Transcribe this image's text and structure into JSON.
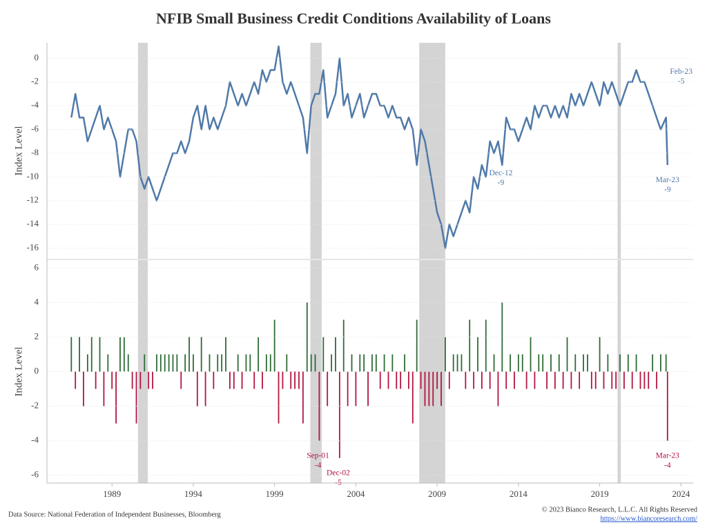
{
  "page": {
    "title": "NFIB Small Business Credit Conditions Availability of Loans",
    "source": "Data Source: National Federation of Independent Businesses, Bloomberg",
    "copyright": "© 2023 Bianco Research, L.L.C. All Rights Reserved",
    "url": "https://www.biancoresearch.com/"
  },
  "chart_data": [
    {
      "type": "line",
      "y_label": "Index Level",
      "color": "#4f79a8",
      "grid": true,
      "xlim": [
        1985,
        2024.75
      ],
      "xticks": [
        1989,
        1994,
        1999,
        2004,
        2009,
        2014,
        2019,
        2024
      ],
      "ylim": [
        -16.9,
        1.3
      ],
      "yticks": [
        0,
        -2,
        -4,
        -6,
        -8,
        -10,
        -12,
        -14,
        -16
      ],
      "recessions": [
        [
          1990.6,
          1991.2
        ],
        [
          2001.2,
          2001.9
        ],
        [
          2007.9,
          2009.5
        ],
        [
          2020.1,
          2020.3
        ]
      ],
      "recession_color": "#d4d4d4",
      "x": [
        1986.5,
        1986.75,
        1987,
        1987.25,
        1987.5,
        1987.75,
        1988,
        1988.25,
        1988.5,
        1988.75,
        1989,
        1989.25,
        1989.5,
        1989.75,
        1990,
        1990.25,
        1990.5,
        1990.75,
        1991,
        1991.25,
        1991.5,
        1991.75,
        1992,
        1992.25,
        1992.5,
        1992.75,
        1993,
        1993.25,
        1993.5,
        1993.75,
        1994,
        1994.25,
        1994.5,
        1994.75,
        1995,
        1995.25,
        1995.5,
        1995.75,
        1996,
        1996.25,
        1996.5,
        1996.75,
        1997,
        1997.25,
        1997.5,
        1997.75,
        1998,
        1998.25,
        1998.5,
        1998.75,
        1999,
        1999.25,
        1999.5,
        1999.75,
        2000,
        2000.25,
        2000.5,
        2000.75,
        2001,
        2001.25,
        2001.5,
        2001.75,
        2002,
        2002.25,
        2002.5,
        2002.75,
        2003,
        2003.25,
        2003.5,
        2003.75,
        2004,
        2004.25,
        2004.5,
        2004.75,
        2005,
        2005.25,
        2005.5,
        2005.75,
        2006,
        2006.25,
        2006.5,
        2006.75,
        2007,
        2007.25,
        2007.5,
        2007.75,
        2008,
        2008.25,
        2008.5,
        2008.75,
        2009,
        2009.25,
        2009.5,
        2009.75,
        2010,
        2010.25,
        2010.5,
        2010.75,
        2011,
        2011.25,
        2011.5,
        2011.75,
        2012,
        2012.25,
        2012.5,
        2012.75,
        2013,
        2013.25,
        2013.5,
        2013.75,
        2014,
        2014.25,
        2014.5,
        2014.75,
        2015,
        2015.25,
        2015.5,
        2015.75,
        2016,
        2016.25,
        2016.5,
        2016.75,
        2017,
        2017.25,
        2017.5,
        2017.75,
        2018,
        2018.25,
        2018.5,
        2018.75,
        2019,
        2019.25,
        2019.5,
        2019.75,
        2020,
        2020.25,
        2020.5,
        2020.75,
        2021,
        2021.25,
        2021.5,
        2021.75,
        2022,
        2022.25,
        2022.5,
        2022.75,
        2023.08,
        2023.17
      ],
      "values": [
        -5,
        -3,
        -5,
        -5,
        -7,
        -6,
        -5,
        -4,
        -6,
        -5,
        -6,
        -7,
        -10,
        -8,
        -6,
        -6,
        -7,
        -10,
        -11,
        -10,
        -11,
        -12,
        -11,
        -10,
        -9,
        -8,
        -8,
        -7,
        -8,
        -7,
        -5,
        -4,
        -6,
        -4,
        -6,
        -5,
        -6,
        -5,
        -4,
        -2,
        -3,
        -4,
        -3,
        -4,
        -3,
        -2,
        -3,
        -1,
        -2,
        -1,
        -1,
        1,
        -2,
        -3,
        -2,
        -3,
        -4,
        -5,
        -8,
        -4,
        -3,
        -3,
        -1,
        -5,
        -4,
        -3,
        0,
        -4,
        -3,
        -5,
        -4,
        -3,
        -5,
        -4,
        -3,
        -3,
        -4,
        -4,
        -5,
        -4,
        -5,
        -5,
        -6,
        -5,
        -6,
        -9,
        -6,
        -7,
        -9,
        -11,
        -13,
        -14,
        -16,
        -14,
        -15,
        -14,
        -13,
        -12,
        -13,
        -10,
        -11,
        -9,
        -10,
        -7,
        -8,
        -7,
        -9,
        -5,
        -6,
        -6,
        -7,
        -6,
        -5,
        -6,
        -4,
        -5,
        -4,
        -4,
        -5,
        -4,
        -5,
        -4,
        -5,
        -3,
        -4,
        -3,
        -4,
        -3,
        -2,
        -3,
        -4,
        -2,
        -3,
        -2,
        -3,
        -4,
        -3,
        -2,
        -2,
        -1,
        -2,
        -2,
        -3,
        -4,
        -5,
        -6,
        -5,
        -9
      ],
      "annotations": [
        {
          "x": 2012.92,
          "label": "Dec-12",
          "value": -9
        },
        {
          "x": 2023.08,
          "label": "Feb-23",
          "value": -5
        },
        {
          "x": 2023.17,
          "label": "Mar-23",
          "value": -9
        }
      ]
    },
    {
      "type": "bar",
      "y_label": "Index Level",
      "color_positive": "#2d6b35",
      "color_negative": "#b3143f",
      "grid": true,
      "xlim": [
        1985,
        2024.75
      ],
      "xticks": [
        1989,
        1994,
        1999,
        2004,
        2009,
        2014,
        2019,
        2024
      ],
      "ylim": [
        -6.45,
        6.45
      ],
      "yticks": [
        6,
        4,
        2,
        0,
        -2,
        -4,
        -6
      ],
      "recessions": [
        [
          1990.6,
          1991.2
        ],
        [
          2001.2,
          2001.9
        ],
        [
          2007.9,
          2009.5
        ],
        [
          2020.1,
          2020.3
        ]
      ],
      "recession_color": "#d4d4d4",
      "x": [
        1986.5,
        1986.75,
        1987,
        1987.25,
        1987.5,
        1987.75,
        1988,
        1988.25,
        1988.5,
        1988.75,
        1989,
        1989.25,
        1989.5,
        1989.75,
        1990,
        1990.25,
        1990.5,
        1990.75,
        1991,
        1991.25,
        1991.5,
        1991.75,
        1992,
        1992.25,
        1992.5,
        1992.75,
        1993,
        1993.25,
        1993.5,
        1993.75,
        1994,
        1994.25,
        1994.5,
        1994.75,
        1995,
        1995.25,
        1995.5,
        1995.75,
        1996,
        1996.25,
        1996.5,
        1996.75,
        1997,
        1997.25,
        1997.5,
        1997.75,
        1998,
        1998.25,
        1998.5,
        1998.75,
        1999,
        1999.25,
        1999.5,
        1999.75,
        2000,
        2000.25,
        2000.5,
        2000.75,
        2001,
        2001.25,
        2001.5,
        2001.75,
        2002,
        2002.25,
        2002.5,
        2002.75,
        2003,
        2003.25,
        2003.5,
        2003.75,
        2004,
        2004.25,
        2004.5,
        2004.75,
        2005,
        2005.25,
        2005.5,
        2005.75,
        2006,
        2006.25,
        2006.5,
        2006.75,
        2007,
        2007.25,
        2007.5,
        2007.75,
        2008,
        2008.25,
        2008.5,
        2008.75,
        2009,
        2009.25,
        2009.5,
        2009.75,
        2010,
        2010.25,
        2010.5,
        2010.75,
        2011,
        2011.25,
        2011.5,
        2011.75,
        2012,
        2012.25,
        2012.5,
        2012.75,
        2013,
        2013.25,
        2013.5,
        2013.75,
        2014,
        2014.25,
        2014.5,
        2014.75,
        2015,
        2015.25,
        2015.5,
        2015.75,
        2016,
        2016.25,
        2016.5,
        2016.75,
        2017,
        2017.25,
        2017.5,
        2017.75,
        2018,
        2018.25,
        2018.5,
        2018.75,
        2019,
        2019.25,
        2019.5,
        2019.75,
        2020,
        2020.25,
        2020.5,
        2020.75,
        2021,
        2021.25,
        2021.5,
        2021.75,
        2022,
        2022.25,
        2022.5,
        2022.75,
        2023.08,
        2023.17
      ],
      "values": [
        2,
        -1,
        2,
        -2,
        1,
        2,
        -1,
        2,
        -2,
        1,
        -1,
        -3,
        2,
        2,
        1,
        -1,
        -3,
        -1,
        1,
        -1,
        -1,
        1,
        1,
        1,
        1,
        1,
        1,
        -1,
        1,
        2,
        1,
        -2,
        2,
        -2,
        1,
        -1,
        1,
        1,
        2,
        -1,
        -1,
        1,
        -1,
        1,
        1,
        -1,
        2,
        -1,
        1,
        1,
        3,
        -3,
        -1,
        1,
        -1,
        -1,
        -1,
        -3,
        4,
        1,
        1,
        -4,
        2,
        -2,
        1,
        2,
        -5,
        3,
        -2,
        1,
        -2,
        1,
        1,
        -2,
        1,
        1,
        -1,
        1,
        -1,
        1,
        -1,
        -1,
        1,
        -1,
        -3,
        3,
        -1,
        -2,
        -2,
        -2,
        -1,
        -2,
        2,
        -1,
        1,
        1,
        1,
        -1,
        3,
        -1,
        2,
        -1,
        3,
        -1,
        1,
        -2,
        4,
        -1,
        1,
        -1,
        1,
        1,
        -1,
        2,
        -1,
        1,
        1,
        -1,
        1,
        -1,
        1,
        -1,
        2,
        -1,
        1,
        -1,
        1,
        1,
        -1,
        -1,
        2,
        -1,
        1,
        -1,
        -1,
        1,
        -1,
        1,
        -1,
        1,
        -1,
        -1,
        -1,
        1,
        -1,
        1,
        1,
        -4
      ],
      "annotations": [
        {
          "x": 2001.67,
          "label": "Sep-01",
          "value": -4
        },
        {
          "x": 2002.92,
          "label": "Dec-02",
          "value": -5
        },
        {
          "x": 2023.17,
          "label": "Mar-23",
          "value": -4
        }
      ]
    }
  ]
}
